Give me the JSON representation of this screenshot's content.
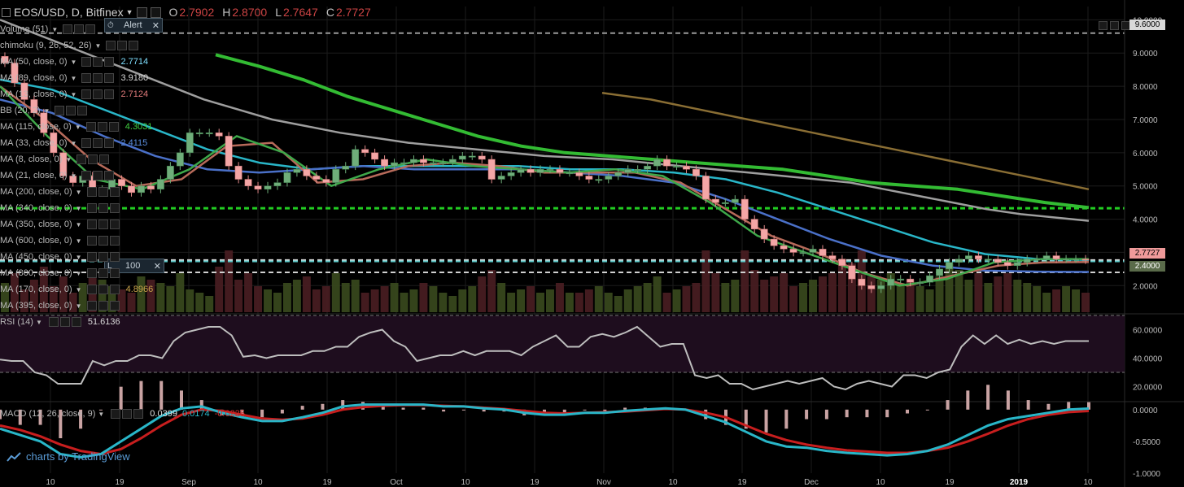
{
  "header": {
    "symbol": "EOS/USD, D, Bitfinex",
    "o_label": "O",
    "o_value": "2.7902",
    "h_label": "H",
    "h_value": "2.8700",
    "l_label": "L",
    "l_value": "2.7647",
    "c_label": "C",
    "c_value": "2.7727",
    "alert_label": "Alert"
  },
  "indicators": [
    {
      "label": "Volume (51)",
      "value": ""
    },
    {
      "label": "chimoku (9, 26, 52, 26)",
      "value": ""
    },
    {
      "label": "MA (50, close, 0)",
      "value": "2.7714",
      "color": "#7fdfff"
    },
    {
      "label": "MA (89, close, 0)",
      "value": "3.9180",
      "color": "#d8d8d8"
    },
    {
      "label": "MA (13, close, 0)",
      "value": "2.7124",
      "color": "#e07a7a"
    },
    {
      "label": "BB (20, 2)",
      "value": ""
    },
    {
      "label": "MA (115, close, 0)",
      "value": "4.3031",
      "color": "#41d041"
    },
    {
      "label": "MA (33, close, 0)",
      "value": "2.4115",
      "color": "#5b8fe0"
    },
    {
      "label": "MA (8, close, 0)",
      "value": ""
    },
    {
      "label": "MA (21, close, 0)",
      "value": ""
    },
    {
      "label": "MA (200, close, 0)",
      "value": ""
    },
    {
      "label": "MA (340, close, 0)",
      "value": ""
    },
    {
      "label": "MA (350, close, 0)",
      "value": ""
    },
    {
      "label": "MA (600, close, 0)",
      "value": ""
    },
    {
      "label": "MA (450, close, 0)",
      "value": ""
    },
    {
      "label": "MA (800, close, 0)",
      "value": ""
    },
    {
      "label": "MA (170, close, 0)",
      "value": "4.8966",
      "color": "#c9a24a"
    },
    {
      "label": "MA (395, close, 0)",
      "value": ""
    }
  ],
  "alert_box_2": "100",
  "rsi": {
    "label": "RSI (14)",
    "value": "51.6136"
  },
  "macd": {
    "label": "MACD (12, 26, close, 9)",
    "hist_value": "0.0399",
    "macd_value": "0.0174",
    "signal_value": "-0.0225"
  },
  "watermark": "charts by TradingView",
  "price_axis": {
    "labels": [
      "10.0000",
      "9.0000",
      "8.0000",
      "7.0000",
      "6.0000",
      "5.0000",
      "4.0000",
      "3.0000",
      "2.0000"
    ],
    "highlight_top": "9.6000",
    "highlight_price": "2.7727",
    "highlight_support": "2.4000"
  },
  "rsi_axis": [
    "60.0000",
    "40.0000",
    "20.0000"
  ],
  "macd_axis": [
    "0.0000",
    "-0.5000",
    "-1.0000"
  ],
  "time_axis": [
    "10",
    "19",
    "Sep",
    "10",
    "19",
    "Oct",
    "10",
    "19",
    "Nov",
    "10",
    "19",
    "Dec",
    "10",
    "19",
    "2019",
    "10"
  ],
  "chart_data": {
    "type": "line",
    "title": "EOS/USD, D, Bitfinex",
    "price_range": [
      1.2,
      10.4
    ],
    "horizontal_lines": [
      {
        "value": 9.6,
        "color": "#9a9a9a",
        "style": "dashed"
      },
      {
        "value": 4.33,
        "color": "#22cc22",
        "style": "dashed"
      },
      {
        "value": 2.77,
        "color": "#e0e0e0",
        "style": "dashed"
      },
      {
        "value": 2.73,
        "color": "#5dc8c8",
        "style": "dashed"
      },
      {
        "value": 2.4,
        "color": "#d0d0d0",
        "style": "dashed"
      }
    ],
    "close": [
      8.7,
      8.1,
      7.6,
      7.2,
      6.6,
      6.0,
      5.3,
      5.1,
      5.3,
      4.8,
      4.9,
      5.2,
      5.0,
      4.8,
      5.0,
      4.9,
      5.2,
      5.6,
      6.0,
      6.6,
      6.6,
      6.6,
      6.5,
      5.6,
      5.2,
      5.0,
      4.9,
      5.0,
      5.1,
      5.4,
      5.5,
      5.3,
      5.2,
      5.1,
      5.5,
      5.6,
      6.1,
      6.0,
      5.8,
      5.6,
      5.7,
      5.7,
      5.8,
      5.7,
      5.7,
      5.7,
      5.8,
      5.9,
      5.9,
      5.8,
      5.2,
      5.3,
      5.4,
      5.5,
      5.4,
      5.5,
      5.5,
      5.4,
      5.4,
      5.3,
      5.2,
      5.2,
      5.3,
      5.4,
      5.5,
      5.5,
      5.6,
      5.8,
      5.6,
      5.6,
      5.5,
      5.3,
      4.6,
      4.5,
      4.5,
      4.6,
      4.0,
      3.7,
      3.4,
      3.2,
      3.1,
      3.0,
      3.0,
      3.1,
      2.9,
      2.8,
      2.6,
      2.2,
      2.0,
      1.9,
      2.0,
      2.2,
      2.2,
      2.1,
      2.1,
      2.3,
      2.5,
      2.7,
      2.8,
      2.9,
      2.8,
      2.8,
      2.7,
      2.6,
      2.7,
      2.8,
      2.8,
      2.9,
      2.8,
      2.8,
      2.8,
      2.77
    ],
    "series": [
      {
        "name": "MA (89, close, 0)",
        "color": "#9e9e9e",
        "values": [
          10.0,
          9.6,
          9.2,
          8.8,
          8.4,
          8.0,
          7.6,
          7.3,
          7.0,
          6.8,
          6.6,
          6.45,
          6.3,
          6.2,
          6.1,
          6.0,
          5.9,
          5.85,
          5.8,
          5.7,
          5.6,
          5.5,
          5.4,
          5.3,
          5.2,
          5.1,
          4.9,
          4.7,
          4.5,
          4.3,
          4.15,
          4.05,
          3.95
        ]
      },
      {
        "name": "MA (115, close, 0)",
        "color": "#33bb33",
        "values": [
          8.95,
          8.6,
          8.2,
          7.7,
          7.3,
          6.9,
          6.5,
          6.2,
          6.0,
          5.9,
          5.8,
          5.7,
          5.6,
          5.5,
          5.3,
          5.1,
          5.0,
          4.9,
          4.7,
          4.5,
          4.35
        ]
      },
      {
        "name": "MA (170, close, 0)",
        "color": "#8a6e34",
        "values": [
          7.8,
          7.6,
          7.3,
          7.0,
          6.7,
          6.4,
          6.1,
          5.8,
          5.5,
          5.2,
          4.9
        ]
      },
      {
        "name": "MA (50, close, 0)",
        "color": "#29b6c8",
        "values": [
          8.2,
          7.9,
          7.3,
          6.7,
          6.1,
          5.7,
          5.5,
          5.6,
          5.6,
          5.6,
          5.6,
          5.5,
          5.5,
          5.4,
          5.2,
          4.8,
          4.3,
          3.8,
          3.3,
          2.95,
          2.8,
          2.77
        ]
      },
      {
        "name": "MA (33, close, 0)",
        "color": "#4a70c8",
        "values": [
          7.6,
          7.2,
          6.5,
          5.9,
          5.5,
          5.4,
          5.5,
          5.6,
          5.5,
          5.5,
          5.5,
          5.4,
          5.3,
          5.1,
          4.6,
          4.0,
          3.4,
          2.9,
          2.6,
          2.45,
          2.42,
          2.41
        ]
      },
      {
        "name": "MA (13, close, 0)",
        "color": "#b76a5a",
        "values": [
          8.0,
          7.0,
          5.8,
          5.0,
          5.2,
          6.2,
          6.3,
          5.1,
          5.2,
          5.6,
          5.7,
          5.6,
          5.4,
          5.4,
          5.4,
          5.1,
          4.3,
          3.5,
          3.0,
          2.4,
          2.0,
          2.3,
          2.6,
          2.7,
          2.71
        ]
      },
      {
        "name": "MA (8, close, 0)",
        "color": "#3ea84a",
        "values": [
          8.0,
          6.5,
          5.2,
          4.9,
          5.5,
          6.5,
          6.0,
          5.0,
          5.5,
          5.8,
          5.6,
          5.5,
          5.4,
          5.5,
          5.3,
          4.5,
          3.5,
          3.0,
          2.5,
          2.0,
          2.2,
          2.7,
          2.8,
          2.8
        ]
      }
    ],
    "volume": [
      0.45,
      0.6,
      0.35,
      0.5,
      0.7,
      0.4,
      0.55,
      0.3,
      0.45,
      0.6,
      0.5,
      0.4,
      0.35,
      0.3,
      0.55,
      0.5,
      0.45,
      0.4,
      0.6,
      0.35,
      0.3,
      0.25,
      0.7,
      0.95,
      0.5,
      0.6,
      0.4,
      0.35,
      0.3,
      0.45,
      0.5,
      0.55,
      0.35,
      0.4,
      0.6,
      0.45,
      0.5,
      0.3,
      0.35,
      0.4,
      0.45,
      0.3,
      0.35,
      0.45,
      0.4,
      0.3,
      0.25,
      0.35,
      0.4,
      0.55,
      0.65,
      0.45,
      0.3,
      0.35,
      0.4,
      0.3,
      0.35,
      0.45,
      0.3,
      0.3,
      0.35,
      0.4,
      0.3,
      0.25,
      0.35,
      0.4,
      0.45,
      0.55,
      0.3,
      0.35,
      0.4,
      0.45,
      0.95,
      0.6,
      0.45,
      0.5,
      0.95,
      0.65,
      0.5,
      0.55,
      0.6,
      0.4,
      0.45,
      0.5,
      0.55,
      0.6,
      0.8,
      0.75,
      0.95,
      0.55,
      0.5,
      0.6,
      0.45,
      0.5,
      0.4,
      0.35,
      0.55,
      0.75,
      0.65,
      0.5,
      0.6,
      0.45,
      0.55,
      0.6,
      0.5,
      0.45,
      0.4,
      0.3,
      0.35,
      0.4,
      0.35,
      0.3
    ],
    "rsi": {
      "range": [
        10,
        70
      ],
      "band": [
        30,
        70
      ],
      "values": [
        39,
        38,
        38,
        30,
        28,
        22,
        22,
        22,
        38,
        35,
        38,
        38,
        42,
        42,
        40,
        52,
        58,
        60,
        62,
        62,
        56,
        41,
        42,
        40,
        42,
        42,
        42,
        45,
        45,
        48,
        48,
        55,
        58,
        60,
        52,
        48,
        38,
        40,
        42,
        42,
        45,
        42,
        45,
        45,
        45,
        42,
        48,
        52,
        56,
        48,
        48,
        55,
        57,
        55,
        58,
        62,
        55,
        48,
        50,
        50,
        28,
        26,
        28,
        22,
        22,
        18,
        20,
        22,
        24,
        22,
        24,
        26,
        20,
        18,
        22,
        24,
        22,
        20,
        28,
        28,
        26,
        30,
        32,
        48,
        56,
        50,
        56,
        50,
        53,
        50,
        52,
        50,
        52,
        52,
        52
      ]
    },
    "macd": {
      "range": [
        -1.0,
        0.1
      ],
      "macd_line": [
        -0.3,
        -0.4,
        -0.5,
        -0.7,
        -0.75,
        -0.7,
        -0.5,
        -0.3,
        -0.1,
        0.02,
        0.05,
        -0.05,
        -0.12,
        -0.18,
        -0.18,
        -0.12,
        -0.05,
        0.05,
        0.08,
        0.08,
        0.08,
        0.08,
        0.05,
        0.05,
        0.02,
        0.0,
        -0.05,
        -0.08,
        -0.08,
        -0.05,
        -0.05,
        -0.02,
        0.0,
        0.02,
        0.0,
        -0.1,
        -0.2,
        -0.35,
        -0.5,
        -0.58,
        -0.6,
        -0.65,
        -0.68,
        -0.7,
        -0.72,
        -0.7,
        -0.65,
        -0.55,
        -0.4,
        -0.25,
        -0.15,
        -0.1,
        -0.05,
        0.0,
        0.017
      ],
      "signal_line": [
        -0.25,
        -0.32,
        -0.42,
        -0.55,
        -0.65,
        -0.7,
        -0.62,
        -0.45,
        -0.25,
        -0.08,
        0.0,
        -0.02,
        -0.08,
        -0.14,
        -0.16,
        -0.14,
        -0.08,
        0.0,
        0.04,
        0.06,
        0.07,
        0.07,
        0.06,
        0.05,
        0.03,
        0.01,
        -0.02,
        -0.05,
        -0.06,
        -0.05,
        -0.04,
        -0.03,
        -0.01,
        0.01,
        0.0,
        -0.05,
        -0.12,
        -0.25,
        -0.38,
        -0.48,
        -0.55,
        -0.6,
        -0.64,
        -0.66,
        -0.68,
        -0.68,
        -0.65,
        -0.6,
        -0.5,
        -0.38,
        -0.25,
        -0.15,
        -0.08,
        -0.04,
        -0.022
      ]
    }
  }
}
